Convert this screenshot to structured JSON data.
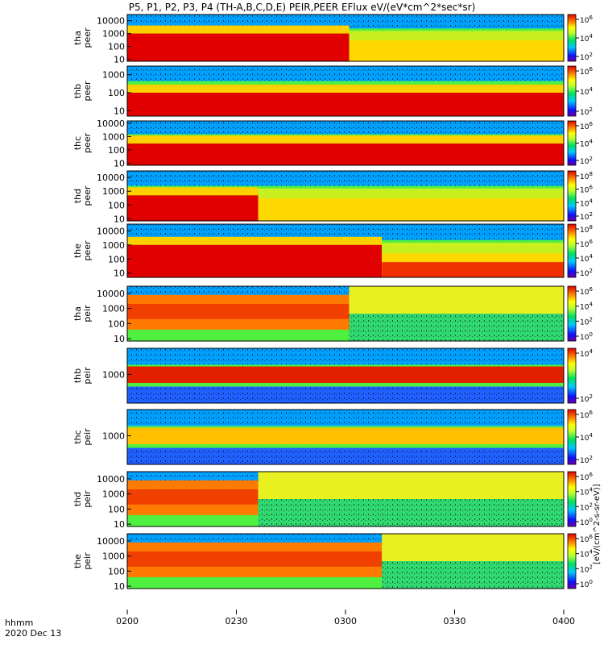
{
  "title": "P5, P1, P2, P3, P4 (TH-A,B,C,D,E) PEIR,PEER EFlux eV/(eV*cm^2*sec*sr)",
  "colorbar_label": "[eV/(cm^2-s-sr-eV)]",
  "time_label": "hhmm",
  "date_label": "2020 Dec 13",
  "chart_data": {
    "type": "heatmap",
    "title": "P5, P1, P2, P3, P4 (TH-A,B,C,D,E) PEIR,PEER EFlux eV/(eV*cm^2*sec*sr)",
    "xlabel": "hhmm",
    "xlim": [
      "0200",
      "0400"
    ],
    "x_ticks": [
      "0200",
      "0230",
      "0300",
      "0330",
      "0400"
    ],
    "x_ticks_minutes": [
      120,
      150,
      180,
      210,
      240
    ],
    "y_scale": "log",
    "colorbar_label": "[eV/(cm^2-s-sr-eV)]",
    "panels": [
      {
        "probe": "tha",
        "species": "peer",
        "label1": "tha",
        "label2": "peer",
        "ylim": [
          7,
          30000
        ],
        "yticks": [
          10,
          100,
          1000,
          10000
        ],
        "ytick_labels": [
          "10",
          "100",
          "1000",
          "10000"
        ],
        "cb_ticks": [
          "10^6",
          "10^4",
          "10^2"
        ],
        "boundary_time": "0301",
        "before": "dense red at low energy",
        "after": "green/yellow"
      },
      {
        "probe": "thb",
        "species": "peer",
        "label1": "thb",
        "label2": "peer",
        "ylim": [
          5,
          3000
        ],
        "yticks": [
          10,
          100,
          1000
        ],
        "ytick_labels": [
          "10",
          "100",
          "1000"
        ],
        "cb_ticks": [
          "10^6",
          "10^4",
          "10^2"
        ],
        "boundary_time": "",
        "before": "red below 100 eV",
        "after": "red below 100 eV"
      },
      {
        "probe": "thc",
        "species": "peer",
        "label1": "thc",
        "label2": "peer",
        "ylim": [
          7,
          15000
        ],
        "yticks": [
          10,
          100,
          1000,
          10000
        ],
        "ytick_labels": [
          "10",
          "100",
          "1000",
          "10000"
        ],
        "cb_ticks": [
          "10^6",
          "10^4",
          "10^2"
        ],
        "boundary_time": "",
        "before": "red below 300 eV",
        "after": "red below 300 eV"
      },
      {
        "probe": "thd",
        "species": "peer",
        "label1": "thd",
        "label2": "peer",
        "ylim": [
          7,
          30000
        ],
        "yticks": [
          10,
          100,
          1000,
          10000
        ],
        "ytick_labels": [
          "10",
          "100",
          "1000",
          "10000"
        ],
        "cb_ticks": [
          "10^8",
          "10^6",
          "10^4",
          "10^2"
        ],
        "boundary_time": "0236",
        "before": "red below 500 eV",
        "after": "green/yellow"
      },
      {
        "probe": "the",
        "species": "peer",
        "label1": "the",
        "label2": "peer",
        "ylim": [
          5,
          30000
        ],
        "yticks": [
          10,
          100,
          1000,
          10000
        ],
        "ytick_labels": [
          "10",
          "100",
          "1000",
          "10000"
        ],
        "cb_ticks": [
          "10^8",
          "10^6",
          "10^4",
          "10^2"
        ],
        "boundary_time": "0310",
        "before": "red below 1000 eV",
        "after": "patchy red/orange below 100 eV"
      },
      {
        "probe": "tha",
        "species": "peir",
        "label1": "tha",
        "label2": "peir",
        "ylim": [
          7,
          30000
        ],
        "yticks": [
          10,
          100,
          1000,
          10000
        ],
        "ytick_labels": [
          "10",
          "100",
          "1000",
          "10000"
        ],
        "cb_ticks": [
          "10^6",
          "10^4",
          "10^2",
          "10^0"
        ],
        "boundary_time": "0301",
        "before": "orange/red 50-5000 eV",
        "after": "green/yellow"
      },
      {
        "probe": "thb",
        "species": "peir",
        "label1": "thb",
        "label2": "peir",
        "ylim": [
          300,
          3000
        ],
        "yticks": [
          1000
        ],
        "ytick_labels": [
          "1000"
        ],
        "cb_ticks": [
          "10^4",
          "10^2"
        ],
        "boundary_time": "",
        "before": "red band near 1000 eV",
        "after": "red band near 1000 eV"
      },
      {
        "probe": "thc",
        "species": "peir",
        "label1": "thc",
        "label2": "peir",
        "ylim": [
          300,
          3000
        ],
        "yticks": [
          1000
        ],
        "ytick_labels": [
          "1000"
        ],
        "cb_ticks": [
          "10^6",
          "10^4",
          "10^2"
        ],
        "boundary_time": "",
        "before": "yellow band near 1000 eV",
        "after": "yellow band near 1000 eV"
      },
      {
        "probe": "thd",
        "species": "peir",
        "label1": "thd",
        "label2": "peir",
        "ylim": [
          7,
          30000
        ],
        "yticks": [
          10,
          100,
          1000,
          10000
        ],
        "ytick_labels": [
          "10",
          "100",
          "1000",
          "10000"
        ],
        "cb_ticks": [
          "10^6",
          "10^4",
          "10^2",
          "10^0"
        ],
        "boundary_time": "0236",
        "before": "orange 50-5000 eV",
        "after": "green/yellow"
      },
      {
        "probe": "the",
        "species": "peir",
        "label1": "the",
        "label2": "peir",
        "ylim": [
          7,
          30000
        ],
        "yticks": [
          10,
          100,
          1000,
          10000
        ],
        "ytick_labels": [
          "10",
          "100",
          "1000",
          "10000"
        ],
        "cb_ticks": [
          "10^6",
          "10^4",
          "10^2",
          "10^0"
        ],
        "boundary_time": "0310",
        "before": "red/orange 100-10000 eV",
        "after": "yellow/green"
      }
    ]
  }
}
